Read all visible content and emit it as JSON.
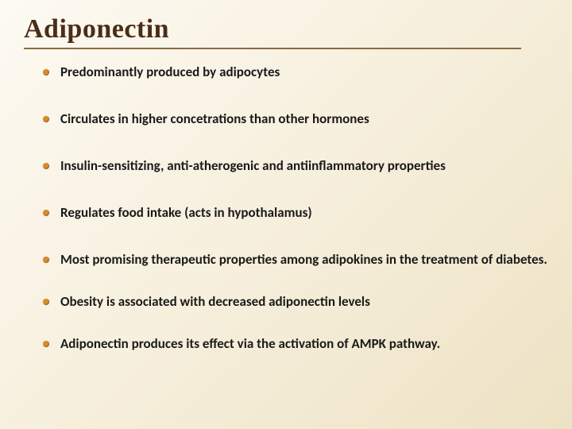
{
  "title": "Adiponectin",
  "accent_color": "#d88b2e",
  "title_color": "#4b2d17",
  "underline_color": "#8b6b3e",
  "text_color": "#1a1a1a",
  "background_gradient": [
    "#fdfaf3",
    "#f6efdc",
    "#ede2c4"
  ],
  "title_fontsize": 34,
  "bullet_fontsize": 17,
  "bullets": [
    "Predominantly produced by adipocytes",
    "Circulates in higher concetrations than other hormones",
    "Insulin-sensitizing, anti-atherogenic and antiinflammatory properties",
    "Regulates food intake (acts in hypothalamus)",
    "Most promising therapeutic properties among adipokines in the treatment of diabetes.",
    "Obesity is associated with decreased adiponectin levels",
    "Adiponectin produces its effect via the activation of AMPK pathway."
  ]
}
